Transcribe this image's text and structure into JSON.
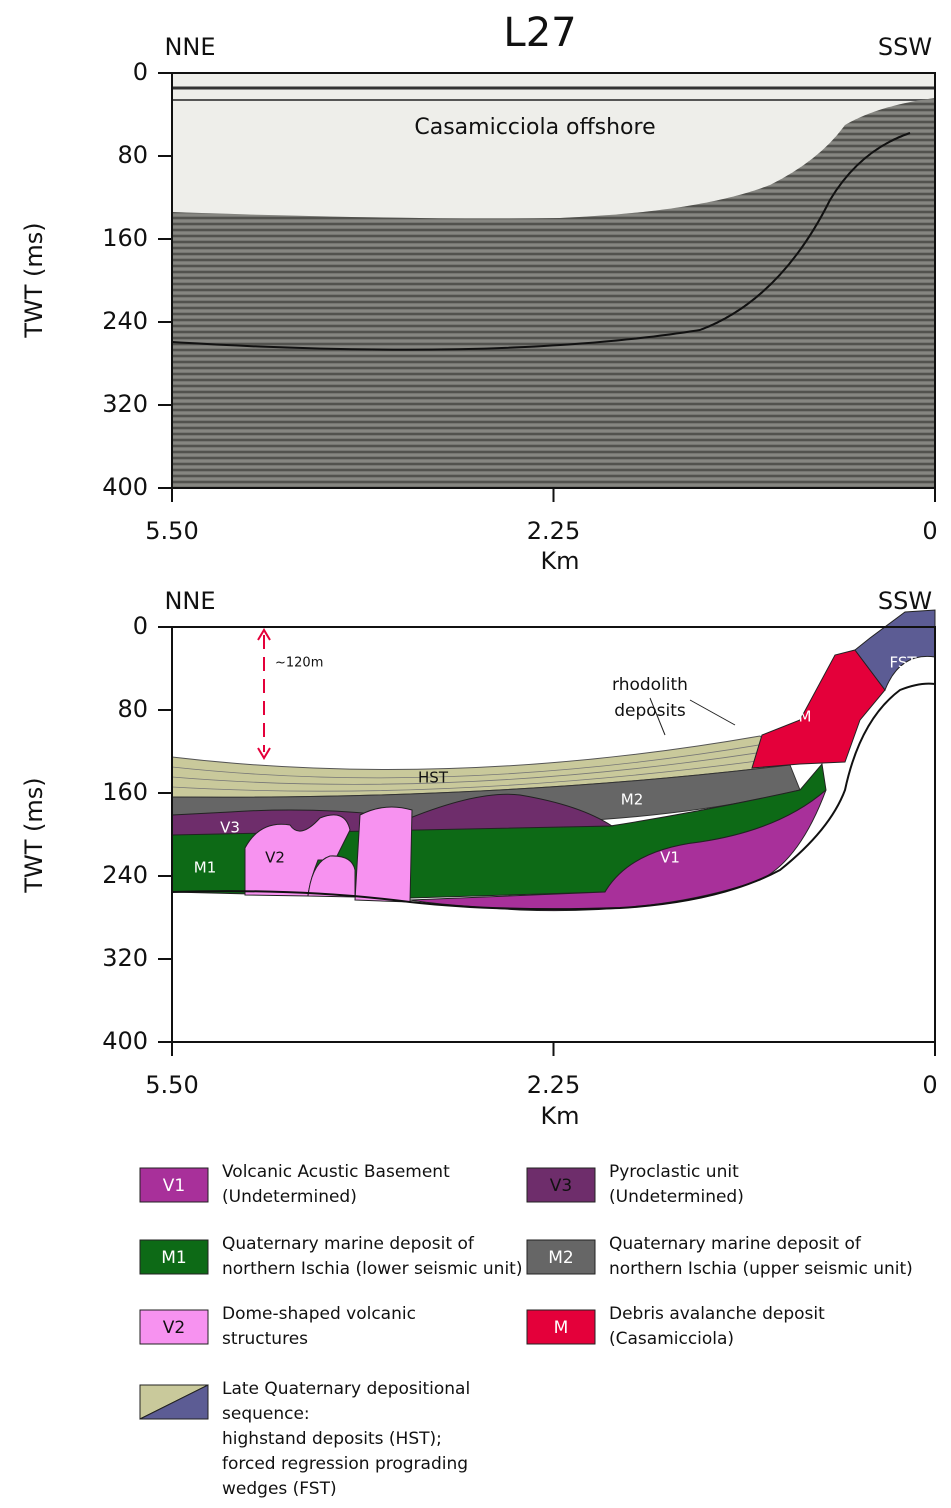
{
  "title": "L27",
  "profile": {
    "left": "NNE",
    "right": "SSW",
    "label": "Casamicciola offshore",
    "y_axis_label": "TWT (ms)",
    "y_ticks": [
      "0",
      "80",
      "160",
      "240",
      "320",
      "400"
    ],
    "x_axis_label": "Km",
    "x_ticks": [
      "5.50",
      "2.25",
      "0"
    ]
  },
  "interpretation": {
    "left": "NNE",
    "right": "SSW",
    "y_axis_label": "TWT (ms)",
    "y_ticks": [
      "0",
      "80",
      "160",
      "240",
      "320",
      "400"
    ],
    "x_axis_label": "Km",
    "x_ticks": [
      "5.50",
      "2.25",
      "0"
    ],
    "units": [
      "HST",
      "M2",
      "V3",
      "V2",
      "M1",
      "V1",
      "M",
      "FST"
    ],
    "depth_note": "~120m",
    "rhodolith": [
      "rhodolith",
      "deposits"
    ]
  },
  "legend": [
    {
      "code": "V1",
      "lines": [
        "Volcanic Acustic Basement",
        "(Undetermined)"
      ]
    },
    {
      "code": "V3",
      "lines": [
        "Pyroclastic unit",
        "(Undetermined)"
      ]
    },
    {
      "code": "M1",
      "lines": [
        "Quaternary marine deposit of",
        "northern Ischia (lower seismic unit)"
      ]
    },
    {
      "code": "M2",
      "lines": [
        "Quaternary marine deposit of",
        "northern Ischia (upper seismic unit)"
      ]
    },
    {
      "code": "V2",
      "lines": [
        "Dome-shaped volcanic",
        "structures"
      ]
    },
    {
      "code": "M",
      "lines": [
        "Debris avalanche deposit",
        "(Casamicciola)"
      ]
    },
    {
      "lines": [
        "Late Quaternary depositional",
        "sequence:",
        "highstand deposits (HST);",
        "forced regression prograding",
        "wedges (FST)"
      ]
    }
  ]
}
